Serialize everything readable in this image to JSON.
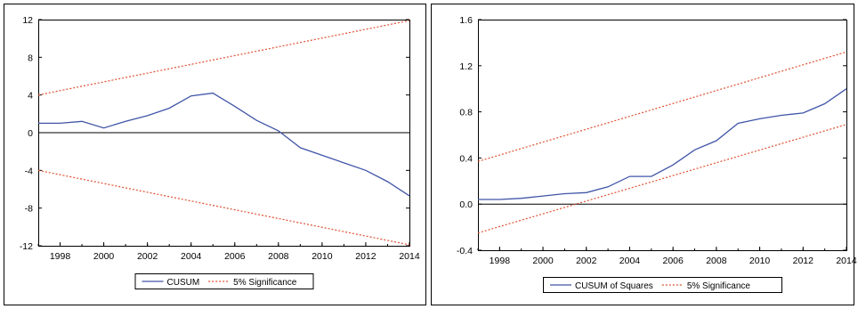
{
  "chart_data": [
    {
      "type": "line",
      "title": "",
      "xlabel": "",
      "ylabel": "",
      "xlim": [
        1997,
        2014
      ],
      "ylim": [
        -12,
        12
      ],
      "xticks": [
        "1998",
        "2000",
        "2002",
        "2004",
        "2006",
        "2008",
        "2010",
        "2012",
        "2014"
      ],
      "yticks": [
        "12",
        "8",
        "4",
        "0",
        "-4",
        "-8",
        "-12"
      ],
      "zero_line": 0,
      "legend_position": "bottom-center",
      "series": [
        {
          "name": "CUSUM",
          "color": "#4055a8",
          "style": "solid",
          "x": [
            1997,
            1998,
            1999,
            2000,
            2001,
            2002,
            2003,
            2004,
            2005,
            2006,
            2007,
            2008,
            2009,
            2010,
            2011,
            2012,
            2013,
            2014
          ],
          "y": [
            1.0,
            1.0,
            1.2,
            0.5,
            1.2,
            1.8,
            2.6,
            3.9,
            4.2,
            2.8,
            1.3,
            0.2,
            -1.6,
            -2.4,
            -3.2,
            -4.0,
            -5.2,
            -6.7
          ]
        },
        {
          "name": "5% Significance",
          "color": "#e05030",
          "style": "dotted",
          "x": [
            1997,
            2014
          ],
          "y": [
            4.0,
            11.9
          ]
        },
        {
          "name": "5% Significance",
          "color": "#e05030",
          "style": "dotted",
          "x": [
            1997,
            2014
          ],
          "y": [
            -4.0,
            -11.9
          ]
        }
      ],
      "legend": [
        "CUSUM",
        "5% Significance"
      ]
    },
    {
      "type": "line",
      "title": "",
      "xlabel": "",
      "ylabel": "",
      "xlim": [
        1997,
        2014
      ],
      "ylim": [
        -0.4,
        1.6
      ],
      "xticks": [
        "1998",
        "2000",
        "2002",
        "2004",
        "2006",
        "2008",
        "2010",
        "2012",
        "2014"
      ],
      "yticks": [
        "1.6",
        "1.2",
        "0.8",
        "0.4",
        "0.0",
        "-0.4"
      ],
      "zero_line": 0,
      "legend_position": "bottom-center",
      "series": [
        {
          "name": "CUSUM of Squares",
          "color": "#4055a8",
          "style": "solid",
          "x": [
            1997,
            1998,
            1999,
            2000,
            2001,
            2002,
            2003,
            2004,
            2005,
            2006,
            2007,
            2008,
            2009,
            2010,
            2011,
            2012,
            2013,
            2014
          ],
          "y": [
            0.04,
            0.04,
            0.05,
            0.07,
            0.09,
            0.1,
            0.15,
            0.24,
            0.24,
            0.34,
            0.47,
            0.55,
            0.7,
            0.74,
            0.77,
            0.79,
            0.87,
            1.0
          ]
        },
        {
          "name": "5% Significance",
          "color": "#e05030",
          "style": "dotted",
          "x": [
            1997,
            2014
          ],
          "y": [
            0.37,
            1.32
          ]
        },
        {
          "name": "5% Significance",
          "color": "#e05030",
          "style": "dotted",
          "x": [
            1997,
            2014
          ],
          "y": [
            -0.25,
            0.69
          ]
        }
      ],
      "legend": [
        "CUSUM of Squares",
        "5% Significance"
      ]
    }
  ]
}
